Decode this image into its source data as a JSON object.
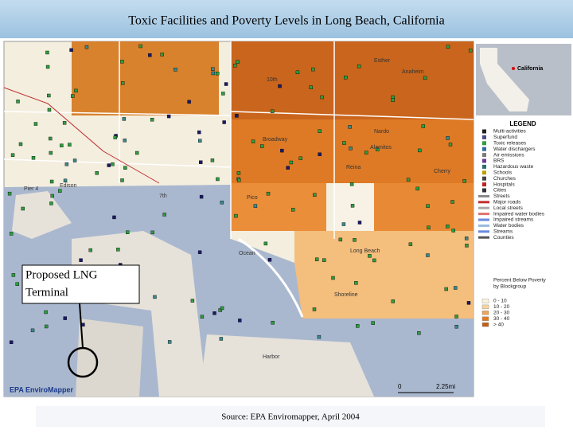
{
  "title": "Toxic Facilities and Poverty Levels in Long Beach, California",
  "callout": [
    "Proposed LNG",
    "Terminal"
  ],
  "source": "Source: EPA Enviromapper, April 2004",
  "inset_label": "California",
  "logo": "EPA EnviroMapper",
  "scale": [
    "0",
    "2.25mi"
  ],
  "legend": {
    "title": "LEGEND",
    "items": [
      "Multi-activities",
      "Superfund",
      "Toxic releases",
      "Water dischargers",
      "Air emissions",
      "BRS",
      "Hazardous waste",
      "Schools",
      "Churches",
      "Hospitals",
      "Cities",
      "Streets",
      "Major roads",
      "Local streets",
      "Impaired water bodies",
      "Impaired streams",
      "Water bodies",
      "Streams",
      "Counties"
    ]
  },
  "poverty_legend": {
    "title": [
      "Percent Below Poverty",
      "by Blockgroup"
    ],
    "classes": [
      "0 - 10",
      "10 - 20",
      "20 - 30",
      "30 - 40",
      "> 40"
    ]
  },
  "street_labels": [
    "Pier 4",
    "Edison",
    "7th",
    "Anaheim",
    "Esther",
    "Ocean",
    "Harbor",
    "Long Beach",
    "Alamitos",
    "Cherry",
    "Broadway",
    "Shoreline",
    "Pico",
    "10th",
    "Reina",
    "Nardo"
  ]
}
